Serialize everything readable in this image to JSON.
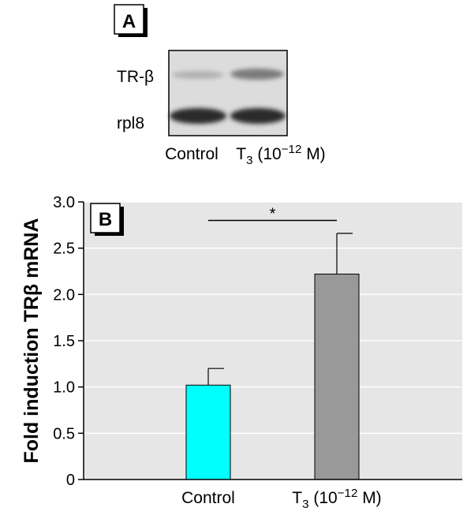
{
  "panel_a": {
    "label": "A",
    "band_labels": [
      "TR-β",
      "rpl8"
    ],
    "lane_labels": [
      "Control",
      "T3 (10−12 M)"
    ],
    "lane_label_parts": [
      {
        "main": "Control"
      },
      {
        "main": "T",
        "sub": "3",
        "rest": " (10",
        "sup": "−12",
        "end": " M)"
      }
    ]
  },
  "chart_data": {
    "type": "bar",
    "panel_label": "B",
    "categories": [
      "Control",
      "T3 (10−12 M)"
    ],
    "category_label_parts": [
      {
        "main": "Control"
      },
      {
        "main": "T",
        "sub": "3",
        "rest": " (10",
        "sup": "−12",
        "end": " M)"
      }
    ],
    "values": [
      1.02,
      2.22
    ],
    "errors": [
      0.18,
      0.44
    ],
    "bar_colors": [
      "#00ffff",
      "#999999"
    ],
    "ylabel": "Fold induction TRβ mRNA",
    "ylim": [
      0,
      3.0
    ],
    "yticks": [
      "0",
      "0.5",
      "1.0",
      "1.5",
      "2.0",
      "2.5",
      "3.0"
    ],
    "grid": true,
    "background": "#e6e6e6",
    "significance": {
      "from": 0,
      "to": 1,
      "y": 2.8,
      "label": "*"
    }
  }
}
